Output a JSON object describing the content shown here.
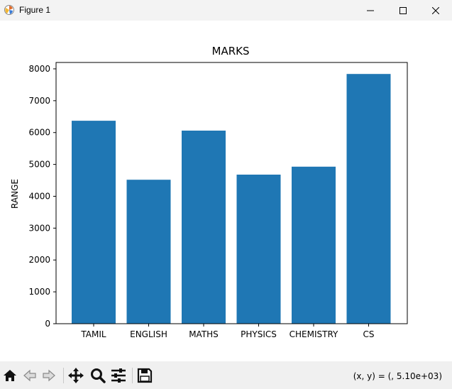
{
  "window": {
    "title": "Figure 1",
    "icon": "matplotlib-icon",
    "controls": [
      "minimize-icon",
      "maximize-icon",
      "close-icon"
    ]
  },
  "chart_data": {
    "type": "bar",
    "title": "MARKS",
    "xlabel": "",
    "ylabel": "RANGE",
    "categories": [
      "TAMIL",
      "ENGLISH",
      "MATHS",
      "PHYSICS",
      "CHEMISTRY",
      "CS"
    ],
    "values": [
      6370,
      4520,
      6060,
      4680,
      4930,
      7840
    ],
    "ylim": [
      0,
      8200
    ],
    "yticks": [
      0,
      1000,
      2000,
      3000,
      4000,
      5000,
      6000,
      7000,
      8000
    ],
    "bar_color": "#1f77b4",
    "grid": false,
    "legend": "none"
  },
  "toolbar": {
    "buttons": [
      "home-icon",
      "back-icon",
      "forward-icon",
      "pan-icon",
      "zoom-icon",
      "configure-subplots-icon",
      "save-icon"
    ],
    "coords": "(x, y) = (, 5.10e+03)"
  }
}
